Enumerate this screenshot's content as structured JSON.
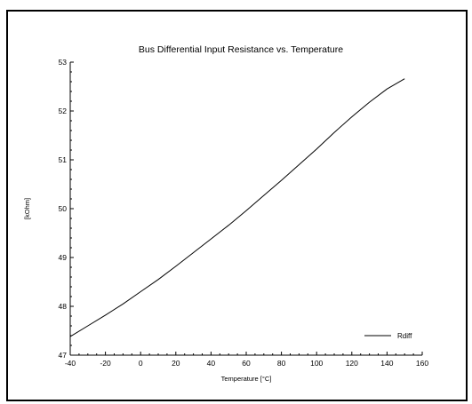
{
  "chart_data": {
    "type": "line",
    "title": "Bus Differential Input Resistance vs. Temperature",
    "xlabel": "Temperature [°C]",
    "ylabel": "[kOhm]",
    "xlim": [
      -40,
      160
    ],
    "ylim": [
      47,
      53
    ],
    "xticks": [
      -40,
      -20,
      0,
      20,
      40,
      60,
      80,
      100,
      120,
      140,
      160
    ],
    "yticks": [
      47,
      48,
      49,
      50,
      51,
      52,
      53
    ],
    "grid": false,
    "legend": {
      "position": "bottom-right"
    },
    "series": [
      {
        "name": "Rdiff",
        "color": "#000000",
        "x": [
          -40,
          -30,
          -20,
          -10,
          0,
          10,
          20,
          30,
          40,
          50,
          60,
          70,
          80,
          90,
          100,
          110,
          120,
          130,
          140,
          150
        ],
        "y": [
          47.38,
          47.6,
          47.82,
          48.05,
          48.3,
          48.55,
          48.82,
          49.1,
          49.38,
          49.66,
          49.96,
          50.27,
          50.58,
          50.9,
          51.22,
          51.56,
          51.88,
          52.18,
          52.45,
          52.66
        ]
      }
    ]
  }
}
